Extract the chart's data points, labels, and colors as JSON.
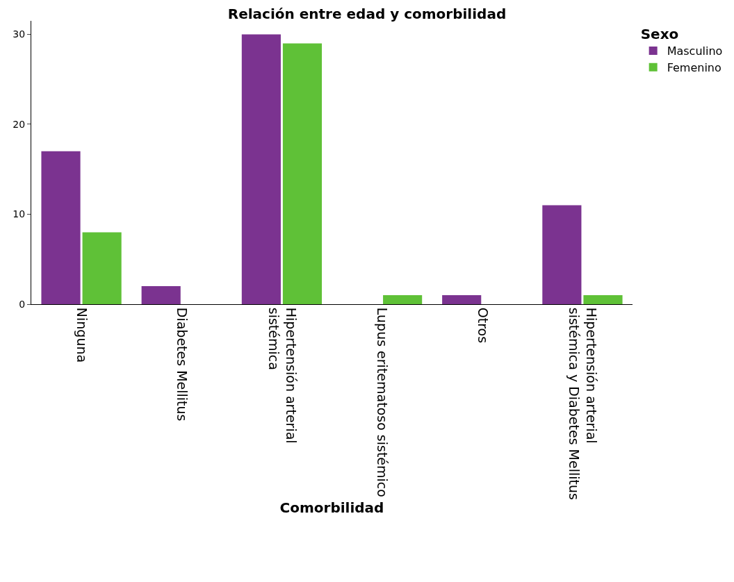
{
  "chart_data": {
    "type": "bar",
    "title": "Relación entre edad y comorbilidad",
    "xlabel": "Comorbilidad",
    "legend_title": "Sexo",
    "categories": [
      "Ninguna",
      "Diabetes Mellitus",
      "Hipertensión arterial sistémica",
      "Lupus eritematoso sistémico",
      "Otros",
      "Hipertensión arterial sistémica y Diabetes Mellitus"
    ],
    "series": [
      {
        "name": "Masculino",
        "color": "#7b3390",
        "values": [
          17,
          2,
          30,
          0,
          1,
          11
        ]
      },
      {
        "name": "Femenino",
        "color": "#5fc137",
        "values": [
          8,
          0,
          29,
          1,
          0,
          1
        ]
      }
    ],
    "ylim": [
      0,
      31.5
    ],
    "yticks": [
      0,
      10,
      20,
      30
    ],
    "grid": false,
    "legend": "top right"
  }
}
